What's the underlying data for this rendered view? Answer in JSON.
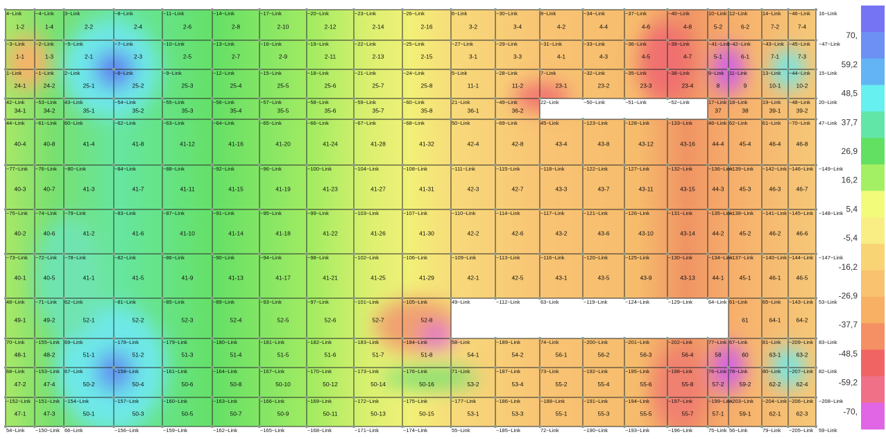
{
  "cells": [
    [
      "1-2",
      "1-4",
      "2-2",
      "2-4",
      "2-6",
      "2-8",
      "2-10",
      "2-12",
      "2-14",
      "2-16",
      "3-2",
      "3-4",
      "4-2",
      "4-4",
      "4-6",
      "4-8",
      "5-2",
      "6-2",
      "7-2",
      "7-4"
    ],
    [
      "1-1",
      "1-3",
      "2-1",
      "2-3",
      "2-5",
      "2-7",
      "2-9",
      "2-11",
      "2-13",
      "2-15",
      "3-1",
      "3-3",
      "4-1",
      "4-3",
      "4-5",
      "4-7",
      "5-1",
      "6-1",
      "7-1",
      "7-3"
    ],
    [
      "24-1",
      "24-2",
      "25-1",
      "25-2",
      "25-3",
      "25-4",
      "25-5",
      "25-6",
      "25-7",
      "25-8",
      "11-1",
      "11-2",
      "23-1",
      "23-2",
      "23-3",
      "23-4",
      "8",
      "9",
      "10-1",
      "10-2"
    ],
    [
      "34-1",
      "34-2",
      "35-1",
      "35-2",
      "35-3",
      "35-4",
      "35-5",
      "35-6",
      "35-7",
      "35-8",
      "36-1",
      "36-2",
      null,
      null,
      null,
      null,
      "37",
      "38",
      "39-1",
      "39-2"
    ],
    [
      "40-4",
      "40-8",
      "41-4",
      "41-8",
      "41-12",
      "41-16",
      "41-20",
      "41-24",
      "41-28",
      "41-32",
      "42-4",
      "42-8",
      "43-4",
      "43-8",
      "43-12",
      "43-16",
      "44-4",
      "45-4",
      "46-4",
      "46-8"
    ],
    [
      "40-3",
      "40-7",
      "41-3",
      "41-7",
      "41-11",
      "41-15",
      "41-19",
      "41-23",
      "41-27",
      "41-31",
      "42-3",
      "42-7",
      "43-3",
      "43-7",
      "43-11",
      "43-15",
      "44-3",
      "45-3",
      "46-3",
      "46-7"
    ],
    [
      "40-2",
      "40-6",
      "41-2",
      "41-6",
      "41-10",
      "41-14",
      "41-18",
      "41-22",
      "41-26",
      "41-30",
      "42-2",
      "42-6",
      "43-2",
      "43-6",
      "43-10",
      "43-14",
      "44-2",
      "45-2",
      "46-2",
      "46-6"
    ],
    [
      "40-1",
      "40-5",
      "41-1",
      "41-5",
      "41-9",
      "41-13",
      "41-17",
      "41-21",
      "41-25",
      "41-29",
      "42-1",
      "42-5",
      "43-1",
      "43-5",
      "43-9",
      "43-13",
      "44-1",
      "45-1",
      "46-1",
      "46-5"
    ],
    [
      "49-1",
      "49-2",
      "52-1",
      "52-2",
      "52-3",
      "52-4",
      "52-5",
      "52-6",
      "52-7",
      "52-8",
      null,
      null,
      null,
      null,
      null,
      null,
      null,
      "61",
      "64-1",
      "64-2"
    ],
    [
      "48-1",
      "48-2",
      "51-1",
      "51-2",
      "51-3",
      "51-4",
      "51-5",
      "51-6",
      "51-7",
      "51-8",
      "54-1",
      "54-2",
      "56-1",
      "56-2",
      "56-3",
      "56-4",
      "58",
      "60",
      "63-1",
      "63-2"
    ],
    [
      "47-2",
      "47-4",
      "50-2",
      "50-4",
      "50-6",
      "50-8",
      "50-10",
      "50-12",
      "50-14",
      "50-16",
      "53-2",
      "53-4",
      "55-2",
      "55-4",
      "55-6",
      "55-8",
      "57-2",
      "59-2",
      "62-2",
      "62-4"
    ],
    [
      "47-1",
      "47-3",
      "50-1",
      "50-3",
      "50-5",
      "50-7",
      "50-9",
      "50-11",
      "50-13",
      "50-15",
      "53-1",
      "53-3",
      "55-1",
      "55-3",
      "55-5",
      "55-7",
      "57-1",
      "59-1",
      "62-1",
      "62-3"
    ]
  ],
  "links": [
    [
      "4~Link",
      "~4~Link",
      "3~Link",
      "~8~Link",
      "~11~Link",
      "~14~Link",
      "~17~Link",
      "~20~Link",
      "~23~Link",
      "~26~Link",
      "6~Link",
      "~30~Link",
      "8~Link",
      "~34~Link",
      "~37~Link",
      "~40~Link",
      "10~Link",
      "12~Link",
      "14~Link",
      "~46~Link",
      "16~Link"
    ],
    [
      "~3~Link",
      "~2~Link",
      "~5~Link",
      "~7~Link",
      "~10~Link",
      "~13~Link",
      "~16~Link",
      "~19~Link",
      "~22~Link",
      "~25~Link",
      "~27~Link",
      "~29~Link",
      "~31~Link",
      "~33~Link",
      "~36~Link",
      "~39~Link",
      "~41~Link",
      "~42~Link",
      "~43~Link",
      "~45~Link",
      "~47~Link"
    ],
    [
      "1~Link",
      "~1~Link",
      "2~Link",
      "~6~Link",
      "~9~Link",
      "~12~Link",
      "~15~Link",
      "~18~Link",
      "~21~Link",
      "~24~Link",
      "5~Link",
      "~28~Link",
      "7~Link",
      "~32~Link",
      "~35~Link",
      "~38~Link",
      "9~Link",
      "11~Link",
      "13~Link",
      "~44~Link",
      "15~Link"
    ],
    [
      "42~Link",
      "~53~Link",
      "43~Link",
      "~54~Link",
      "~55~Link",
      "~56~Link",
      "~57~Link",
      "~58~Link",
      "~59~Link",
      "~60~Link",
      "21~Link",
      "~49~Link",
      "22~Link",
      "~50~Link",
      "~51~Link",
      "~52~Link",
      "17~Link",
      "18~Link",
      "19~Link",
      "~48~Link",
      "20~Link"
    ],
    [
      "44~Link",
      "~61~Link",
      "60~Link",
      "~62~Link",
      "~63~Link",
      "~64~Link",
      "~65~Link",
      "~66~Link",
      "~67~Link",
      "~68~Link",
      "50~Link",
      "~69~Link",
      "45~Link",
      "~123~Link",
      "~128~Link",
      "~133~Link",
      "46~Link",
      "62~Link",
      "61~Link",
      "~70~Link",
      "47~Link"
    ],
    [
      "~77~Link",
      "~76~Link",
      "~80~Link",
      "~84~Link",
      "~88~Link",
      "~92~Link",
      "~96~Link",
      "~100~Link",
      "~104~Link",
      "~108~Link",
      "~111~Link",
      "~115~Link",
      "~118~Link",
      "~122~Link",
      "~127~Link",
      "~132~Link",
      "~136~Link",
      "~139~Link",
      "~142~Link",
      "~146~Link",
      "~149~Link"
    ],
    [
      "~75~Link",
      "~74~Link",
      "~79~Link",
      "~83~Link",
      "~87~Link",
      "~91~Link",
      "~95~Link",
      "~99~Link",
      "~103~Link",
      "~107~Link",
      "~110~Link",
      "~114~Link",
      "~117~Link",
      "~121~Link",
      "~126~Link",
      "~131~Link",
      "~135~Link",
      "~138~Link",
      "~141~Link",
      "~145~Link",
      "~148~Link"
    ],
    [
      "~73~Link",
      "~72~Link",
      "~78~Link",
      "~82~Link",
      "~86~Link",
      "~90~Link",
      "~94~Link",
      "~98~Link",
      "~102~Link",
      "~106~Link",
      "~109~Link",
      "~113~Link",
      "~116~Link",
      "~120~Link",
      "~125~Link",
      "~130~Link",
      "~134~Link",
      "~137~Link",
      "~140~Link",
      "~144~Link",
      "~147~Link"
    ],
    [
      "48~Link",
      "~71~Link",
      "62~Link",
      "~81~Link",
      "~85~Link",
      "~89~Link",
      "~93~Link",
      "~97~Link",
      "~101~Link",
      "~105~Link",
      "49~Link",
      "~112~Link",
      "63~Link",
      "~119~Link",
      "~124~Link",
      "~129~Link",
      "64~Link",
      "61~Link",
      "65~Link",
      "~143~Link",
      "53~Link"
    ],
    [
      "70~Link",
      "~155~Link",
      "69~Link",
      "~178~Link",
      "~179~Link",
      "~180~Link",
      "~181~Link",
      "~182~Link",
      "~183~Link",
      "~184~Link",
      "58~Link",
      "~189~Link",
      "74~Link",
      "~200~Link",
      "~201~Link",
      "~202~Link",
      "77~Link",
      "67~Link",
      "81~Link",
      "~209~Link",
      "83~Link"
    ],
    [
      "68~Link",
      "~153~Link",
      "67~Link",
      "~158~Link",
      "~161~Link",
      "~164~Link",
      "~167~Link",
      "~170~Link",
      "~173~Link",
      "~176~Link",
      "71~Link",
      "~187~Link",
      "73~Link",
      "~192~Link",
      "~195~Link",
      "~198~Link",
      "76~Link",
      "78~Link",
      "80~Link",
      "~207~Link",
      "82~Link"
    ],
    [
      "~152~Link",
      "~151~Link",
      "~154~Link",
      "~157~Link",
      "~160~Link",
      "~163~Link",
      "~166~Link",
      "~169~Link",
      "~172~Link",
      "~175~Link",
      "~177~Link",
      "~186~Link",
      "~188~Link",
      "~191~Link",
      "~194~Link",
      "~197~Link",
      "~199~Link",
      "~203~Link",
      "~204~Link",
      "~206~Link",
      "~208~Link"
    ],
    [
      "54~Link",
      "~150~Link",
      "66~Link",
      "~156~Link",
      "~159~Link",
      "~162~Link",
      "~165~Link",
      "~168~Link",
      "~171~Link",
      "~174~Link",
      "55~Link",
      "~185~Link",
      "72~Link",
      "~190~Link",
      "~193~Link",
      "~196~Link",
      "75~Link",
      "56~Link",
      "79~Link",
      "~205~Link",
      "59~Link"
    ]
  ],
  "legend": [
    "70,",
    "59,2",
    "48,5",
    "37,7",
    "26,9",
    "16,2",
    "5,4",
    "-5,4",
    "-16,2",
    "-26,9",
    "-37,7",
    "-48,5",
    "-59,2",
    "-70,"
  ]
}
